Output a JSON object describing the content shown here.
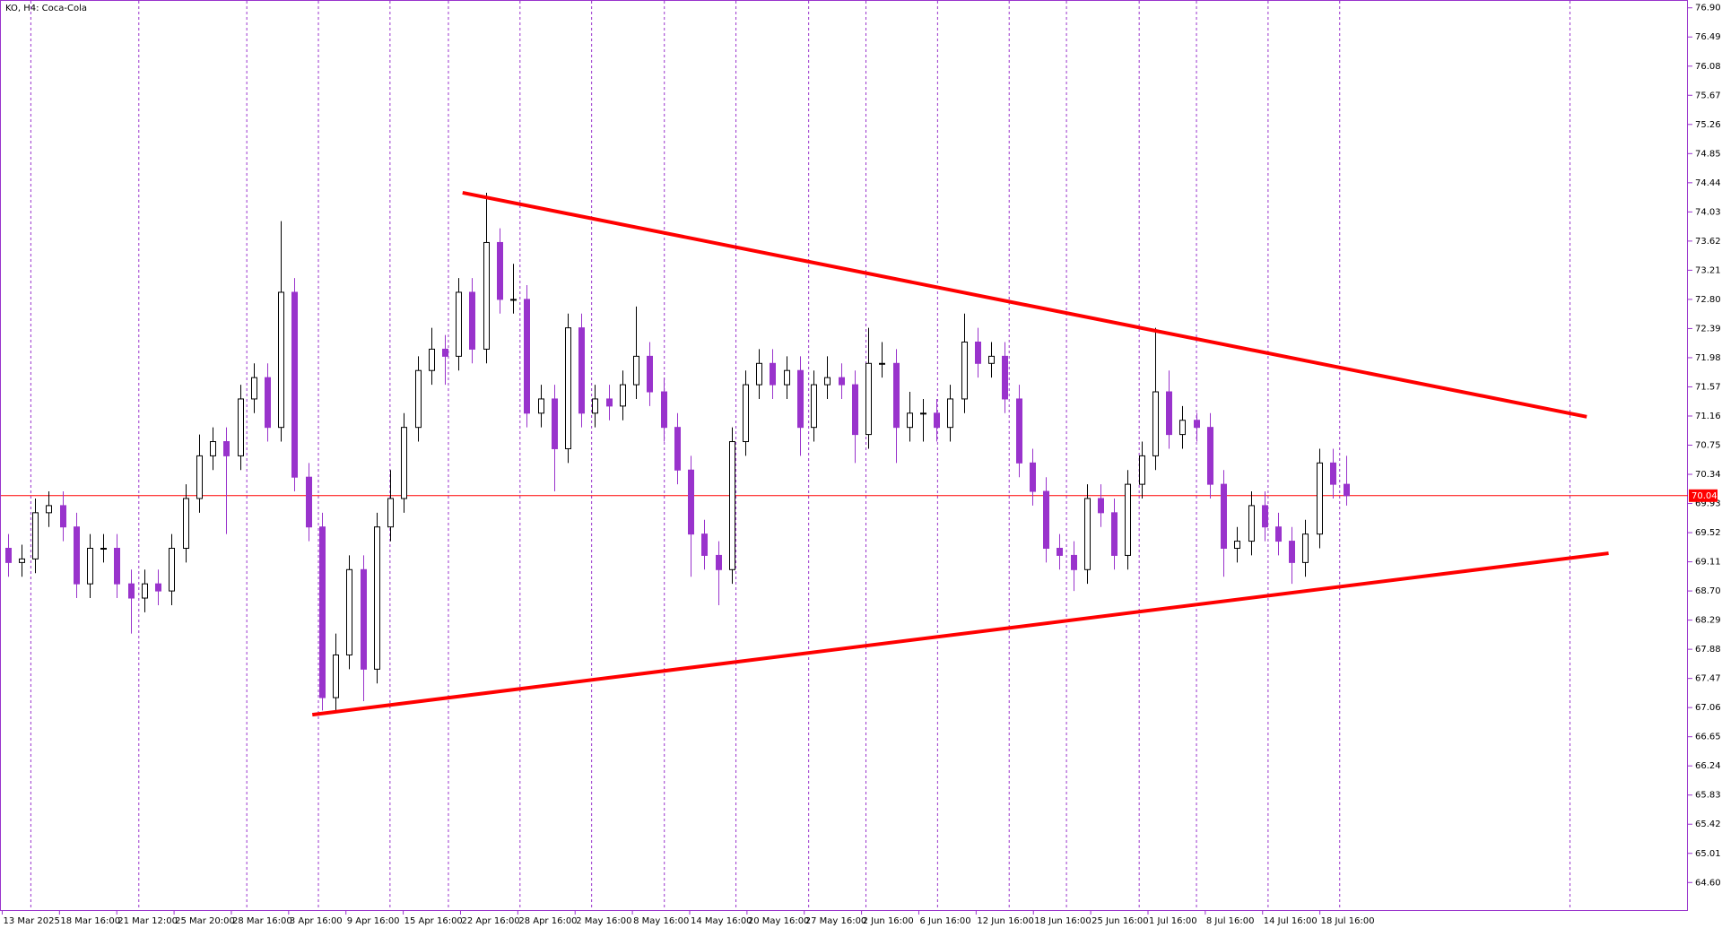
{
  "chart_data": {
    "type": "candlestick",
    "title": "KO, H4:  Coca-Cola",
    "x_labels": [
      "13 Mar 2025",
      "18 Mar 16:00",
      "21 Mar 12:00",
      "25 Mar 20:00",
      "28 Mar 16:00",
      "3 Apr 16:00",
      "9 Apr 16:00",
      "15 Apr 16:00",
      "22 Apr 16:00",
      "28 Apr 16:00",
      "2 May 16:00",
      "8 May 16:00",
      "14 May 16:00",
      "20 May 16:00",
      "27 May 16:00",
      "2 Jun 16:00",
      "6 Jun 16:00",
      "12 Jun 16:00",
      "18 Jun 16:00",
      "25 Jun 16:00",
      "1 Jul 16:00",
      "8 Jul 16:00",
      "14 Jul 16:00",
      "18 Jul 16:00"
    ],
    "open": [
      69.3,
      69.1,
      69.15,
      69.8,
      69.9,
      69.6,
      68.8,
      69.3,
      69.3,
      68.8,
      68.6,
      68.8,
      68.7,
      69.3,
      70.0,
      70.6,
      70.8,
      70.6,
      71.4,
      71.7,
      71.0,
      72.9,
      70.3,
      69.6,
      67.2,
      67.8,
      69.0,
      67.6,
      69.6,
      70.0,
      71.0,
      71.8,
      72.1,
      72.0,
      72.9,
      72.1,
      73.6,
      72.8,
      72.8,
      71.2,
      71.4,
      70.7,
      72.4,
      71.2,
      71.4,
      71.3,
      71.6,
      72.0,
      71.5,
      71.0,
      70.4,
      69.5,
      69.2,
      69.0,
      70.8,
      71.6,
      71.9,
      71.6,
      71.8,
      71.0,
      71.6,
      71.7,
      71.6,
      70.9,
      71.9,
      71.9,
      71.0,
      71.2,
      71.2,
      71.0,
      71.4,
      72.2,
      71.9,
      72.0,
      71.4,
      70.5,
      70.1,
      69.3,
      69.2,
      69.0,
      70.0,
      69.8,
      69.2,
      70.2,
      70.6,
      71.5,
      70.9,
      71.1,
      71.0,
      70.2,
      69.3,
      69.4,
      69.9,
      69.6,
      69.4,
      69.1,
      69.5,
      70.5,
      70.2
    ],
    "high": [
      69.5,
      69.35,
      70.0,
      70.1,
      70.1,
      69.8,
      69.5,
      69.5,
      69.5,
      69.0,
      69.0,
      69.0,
      69.5,
      70.2,
      70.9,
      71.0,
      71.0,
      71.6,
      71.9,
      71.9,
      73.9,
      73.1,
      70.5,
      69.8,
      68.1,
      69.2,
      69.2,
      69.8,
      70.4,
      71.2,
      72.0,
      72.4,
      72.3,
      73.1,
      73.1,
      74.3,
      73.8,
      73.3,
      73.0,
      71.6,
      71.6,
      72.6,
      72.6,
      71.6,
      71.6,
      71.8,
      72.7,
      72.2,
      71.7,
      71.2,
      70.6,
      69.7,
      69.4,
      71.0,
      71.8,
      72.1,
      72.1,
      72.0,
      72.0,
      71.8,
      72.0,
      71.9,
      71.8,
      72.4,
      72.2,
      72.1,
      71.5,
      71.4,
      71.4,
      71.6,
      72.6,
      72.4,
      72.2,
      72.2,
      71.6,
      70.7,
      70.3,
      69.5,
      69.4,
      70.2,
      70.2,
      70.0,
      70.4,
      70.8,
      72.4,
      71.8,
      71.3,
      71.2,
      71.2,
      70.4,
      69.6,
      70.1,
      70.1,
      69.8,
      69.6,
      69.7,
      70.7,
      70.7,
      70.6
    ],
    "low": [
      68.9,
      68.9,
      68.95,
      69.6,
      69.4,
      68.6,
      68.6,
      69.1,
      68.6,
      68.1,
      68.4,
      68.5,
      68.5,
      69.1,
      69.8,
      70.4,
      69.5,
      70.4,
      71.2,
      70.8,
      70.8,
      70.1,
      69.4,
      67.02,
      67.02,
      67.6,
      67.15,
      67.4,
      69.4,
      69.8,
      70.8,
      71.6,
      71.6,
      71.8,
      71.9,
      71.9,
      72.6,
      72.6,
      71.0,
      71.0,
      70.1,
      70.5,
      71.0,
      71.0,
      71.1,
      71.1,
      71.4,
      71.3,
      70.8,
      70.2,
      68.9,
      69.0,
      68.5,
      68.8,
      70.6,
      71.4,
      71.4,
      71.4,
      70.6,
      70.8,
      71.4,
      71.4,
      70.5,
      70.7,
      71.7,
      70.5,
      70.8,
      70.8,
      70.8,
      70.8,
      71.2,
      71.7,
      71.7,
      71.2,
      70.3,
      69.9,
      69.1,
      69.0,
      68.7,
      68.8,
      69.6,
      69.0,
      69.0,
      70.0,
      70.4,
      70.7,
      70.7,
      70.8,
      70.0,
      68.9,
      69.1,
      69.2,
      69.4,
      69.2,
      68.8,
      68.9,
      69.3,
      70.0,
      69.9
    ],
    "close": [
      69.1,
      69.15,
      69.8,
      69.9,
      69.6,
      68.8,
      69.3,
      69.3,
      68.8,
      68.6,
      68.8,
      68.7,
      69.3,
      70.0,
      70.6,
      70.8,
      70.6,
      71.4,
      71.7,
      71.0,
      72.9,
      70.3,
      69.6,
      67.2,
      67.8,
      69.0,
      67.6,
      69.6,
      70.0,
      71.0,
      71.8,
      72.1,
      72.0,
      72.9,
      72.1,
      73.6,
      72.8,
      72.8,
      71.2,
      71.4,
      70.7,
      72.4,
      71.2,
      71.4,
      71.3,
      71.6,
      72.0,
      71.5,
      71.0,
      70.4,
      69.5,
      69.2,
      69.0,
      70.8,
      71.6,
      71.9,
      71.6,
      71.8,
      71.0,
      71.6,
      71.7,
      71.6,
      70.9,
      71.9,
      71.9,
      71.0,
      71.2,
      71.2,
      71.0,
      71.4,
      72.2,
      71.9,
      72.0,
      71.4,
      70.5,
      70.1,
      69.3,
      69.2,
      69.0,
      70.0,
      69.8,
      69.2,
      70.2,
      70.6,
      71.5,
      70.9,
      71.1,
      71.0,
      70.2,
      69.3,
      69.4,
      69.9,
      69.6,
      69.4,
      69.1,
      69.5,
      70.5,
      70.2,
      70.04
    ],
    "up_color": "#ffffff",
    "down_color": "#9933cc",
    "outline_color": "#000000",
    "current_price": 70.04,
    "current_price_color": "#ff0000",
    "trendlines": [
      {
        "x": [
          33.3,
          115.6
        ],
        "y": [
          74.3,
          71.15
        ],
        "color": "#ff0000"
      },
      {
        "x": [
          22.3,
          117.2
        ],
        "y": [
          66.96,
          69.23
        ],
        "color": "#ff0000"
      }
    ],
    "ylim": [
      64.2,
      77.01
    ],
    "yticks": [
      {
        "value": 76.9,
        "label": "76.90"
      },
      76.49,
      76.08,
      75.67,
      75.26,
      74.85,
      74.44,
      74.03,
      73.62,
      73.21,
      {
        "value": 72.8,
        "label": "72.80"
      },
      72.39,
      71.98,
      71.57,
      71.16,
      70.75,
      70.34,
      69.93,
      69.52,
      69.11,
      {
        "value": 68.7,
        "label": "68.70"
      },
      68.29,
      67.88,
      67.47,
      67.06,
      66.65,
      66.24,
      65.83,
      65.42,
      65.01,
      {
        "value": 64.6,
        "label": "64.60"
      }
    ]
  }
}
